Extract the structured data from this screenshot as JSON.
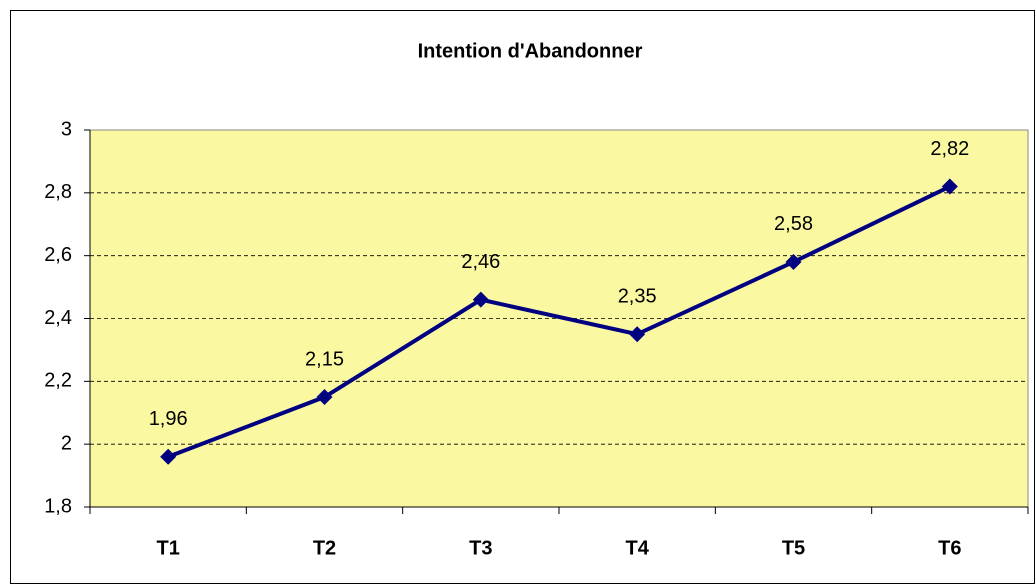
{
  "chart_data": {
    "type": "line",
    "title": "Intention d'Abandonner",
    "categories": [
      "T1",
      "T2",
      "T3",
      "T4",
      "T5",
      "T6"
    ],
    "values": [
      1.96,
      2.15,
      2.46,
      2.35,
      2.58,
      2.82
    ],
    "value_labels": [
      "1,96",
      "2,15",
      "2,46",
      "2,35",
      "2,58",
      "2,82"
    ],
    "color": "#000080",
    "ylim": [
      1.8,
      3
    ],
    "yticks": [
      {
        "value": 1.8,
        "label": "1,8"
      },
      2,
      {
        "value": 2.2,
        "label": "2,2"
      },
      {
        "value": 2.4,
        "label": "2,4"
      },
      {
        "value": 2.6,
        "label": "2,6"
      },
      {
        "value": 2.8,
        "label": "2,8"
      },
      3
    ],
    "grid": true
  }
}
